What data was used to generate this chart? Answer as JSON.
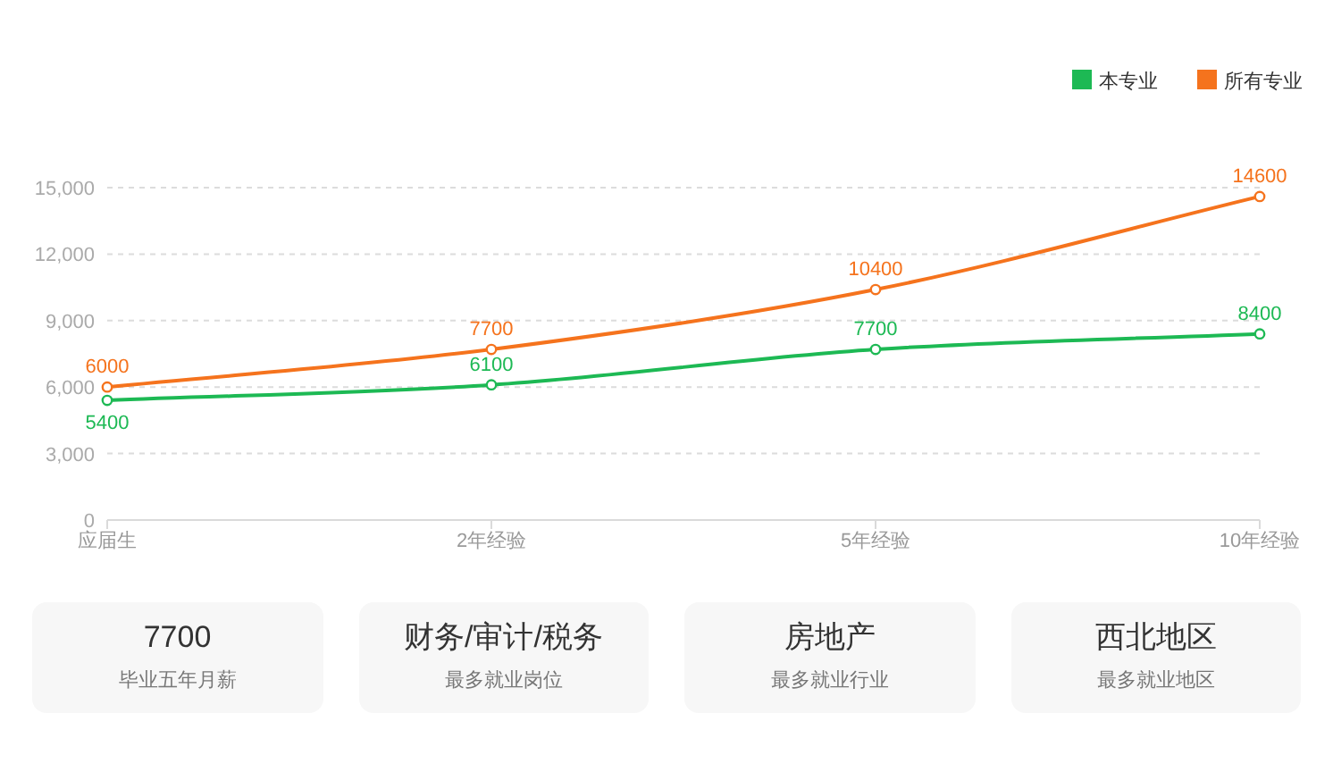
{
  "chart_data": [
    {
      "type": "line",
      "categories": [
        "应届生",
        "2年经验",
        "5年经验",
        "10年经验"
      ],
      "series": [
        {
          "name": "本专业",
          "color": "#1db954",
          "values": [
            5400,
            6100,
            7700,
            8400
          ]
        },
        {
          "name": "所有专业",
          "color": "#f5731d",
          "values": [
            6000,
            7700,
            10400,
            14600
          ]
        }
      ],
      "ylim": [
        0,
        15000
      ],
      "yticks": [
        0,
        {
          "value": 3000,
          "label": "3,000"
        },
        {
          "value": 6000,
          "label": "6,000"
        },
        {
          "value": 9000,
          "label": "9,000"
        },
        {
          "value": 12000,
          "label": "12,000"
        },
        {
          "value": 15000,
          "label": "15,000"
        }
      ],
      "grid": "y",
      "legend": "top right",
      "marker": "circle",
      "line_style": "solid",
      "data_labels": true
    },
    {
      "type": "other",
      "annotations": [
        "7700",
        "毕业五年月薪",
        "财务/审计/税务",
        "最多就业岗位",
        "房地产",
        "最多就业行业",
        "西北地区",
        "最多就业地区"
      ]
    }
  ]
}
